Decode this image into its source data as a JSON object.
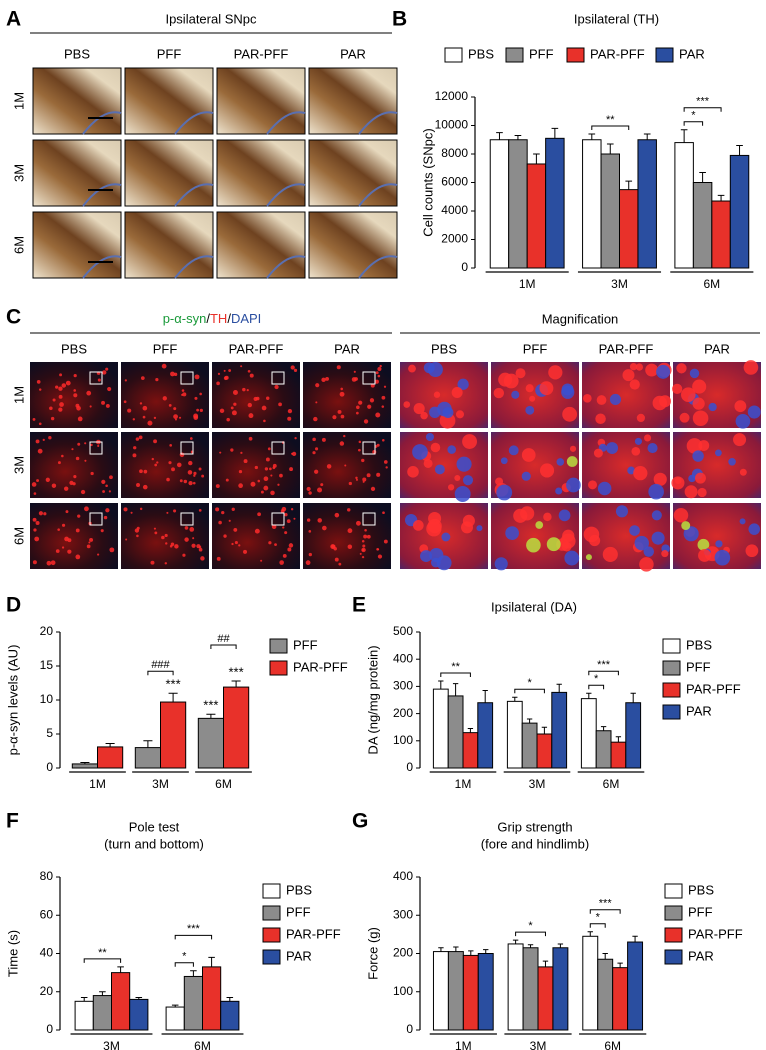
{
  "figure_labels": {
    "a": "A",
    "b": "B",
    "c": "C",
    "d": "D",
    "e": "E",
    "f": "F",
    "g": "G"
  },
  "panel_a": {
    "title": "Ipsilateral SNpc",
    "columns": [
      "PBS",
      "PFF",
      "PAR-PFF",
      "PAR"
    ],
    "rows": [
      "1M",
      "3M",
      "6M"
    ]
  },
  "panel_c": {
    "title_parts": [
      "p-α-syn",
      "/",
      "TH",
      "/",
      "DAPI"
    ],
    "title_colors": [
      "#1a9a3a",
      "#000000",
      "#e8312a",
      "#000000",
      "#2a4ea0"
    ],
    "magnification_title": "Magnification",
    "columns": [
      "PBS",
      "PFF",
      "PAR-PFF",
      "PAR"
    ],
    "rows": [
      "1M",
      "3M",
      "6M"
    ]
  },
  "chart_data": [
    {
      "type": "bar",
      "title": "Ipsilateral (TH)",
      "y_label": "Cell counts (SNpc)",
      "legend": "top",
      "categories": [
        "1M",
        "3M",
        "6M"
      ],
      "ylim": [
        0,
        12000
      ],
      "yticks": [
        0,
        2000,
        4000,
        6000,
        8000,
        10000,
        12000
      ],
      "series": [
        {
          "name": "PBS",
          "color": "#ffffff",
          "values": [
            9000,
            9000,
            8800
          ],
          "errors": [
            500,
            400,
            900
          ]
        },
        {
          "name": "PFF",
          "color": "#8c8c8c",
          "values": [
            9000,
            8000,
            6000
          ],
          "errors": [
            300,
            700,
            700
          ]
        },
        {
          "name": "PAR-PFF",
          "color": "#e8312a",
          "values": [
            7300,
            5500,
            4700
          ],
          "errors": [
            700,
            600,
            400
          ]
        },
        {
          "name": "PAR",
          "color": "#2a4ea0",
          "values": [
            9100,
            9000,
            7900
          ],
          "errors": [
            700,
            400,
            700
          ]
        }
      ],
      "annotations": [
        {
          "text": "**",
          "category": 1,
          "series": [
            0,
            2
          ]
        },
        {
          "text": "*",
          "category": 2,
          "series": [
            0,
            1
          ]
        },
        {
          "text": "***",
          "category": 2,
          "series": [
            0,
            2
          ]
        }
      ]
    },
    {
      "type": "bar",
      "y_label": "p-α-syn levels (AU)",
      "legend": "right",
      "categories": [
        "1M",
        "3M",
        "6M"
      ],
      "ylim": [
        0,
        20
      ],
      "yticks": [
        0,
        5,
        10,
        15,
        20
      ],
      "series": [
        {
          "name": "PFF",
          "color": "#8c8c8c",
          "values": [
            0.6,
            3.0,
            7.3
          ],
          "errors": [
            0.2,
            1.0,
            0.6
          ]
        },
        {
          "name": "PAR-PFF",
          "color": "#e8312a",
          "values": [
            3.1,
            9.7,
            11.9
          ],
          "errors": [
            0.5,
            1.3,
            0.9
          ]
        }
      ],
      "annotations": [
        {
          "text": "***",
          "category": 1,
          "series": [
            1
          ]
        },
        {
          "text": "###",
          "category": 1,
          "series": [
            0,
            1
          ]
        },
        {
          "text": "***",
          "category": 2,
          "series": [
            0
          ]
        },
        {
          "text": "***",
          "category": 2,
          "series": [
            1
          ]
        },
        {
          "text": "##",
          "category": 2,
          "series": [
            0,
            1
          ]
        }
      ]
    },
    {
      "type": "bar",
      "title": "Ipsilateral (DA)",
      "y_label": "DA (ng/mg protein)",
      "legend": "right",
      "categories": [
        "1M",
        "3M",
        "6M"
      ],
      "ylim": [
        0,
        500
      ],
      "yticks": [
        0,
        100,
        200,
        300,
        400,
        500
      ],
      "series": [
        {
          "name": "PBS",
          "color": "#ffffff",
          "values": [
            290,
            245,
            255
          ],
          "errors": [
            30,
            15,
            20
          ]
        },
        {
          "name": "PFF",
          "color": "#8c8c8c",
          "values": [
            265,
            165,
            137
          ],
          "errors": [
            45,
            15,
            15
          ]
        },
        {
          "name": "PAR-PFF",
          "color": "#e8312a",
          "values": [
            130,
            125,
            95
          ],
          "errors": [
            15,
            25,
            20
          ]
        },
        {
          "name": "PAR",
          "color": "#2a4ea0",
          "values": [
            240,
            278,
            240
          ],
          "errors": [
            45,
            30,
            35
          ]
        }
      ],
      "annotations": [
        {
          "text": "**",
          "category": 0,
          "series": [
            0,
            2
          ]
        },
        {
          "text": "*",
          "category": 1,
          "series": [
            0,
            2
          ]
        },
        {
          "text": "*",
          "category": 2,
          "series": [
            0,
            1
          ]
        },
        {
          "text": "***",
          "category": 2,
          "series": [
            0,
            2
          ]
        }
      ]
    },
    {
      "type": "bar",
      "title": "Pole test",
      "subtitle": "(turn and bottom)",
      "y_label": "Time (s)",
      "legend": "right",
      "categories": [
        "3M",
        "6M"
      ],
      "ylim": [
        0,
        80
      ],
      "yticks": [
        0,
        20,
        40,
        60,
        80
      ],
      "series": [
        {
          "name": "PBS",
          "color": "#ffffff",
          "values": [
            15,
            12
          ],
          "errors": [
            2,
            1
          ]
        },
        {
          "name": "PFF",
          "color": "#8c8c8c",
          "values": [
            18,
            28
          ],
          "errors": [
            2,
            3
          ]
        },
        {
          "name": "PAR-PFF",
          "color": "#e8312a",
          "values": [
            30,
            33
          ],
          "errors": [
            3,
            5
          ]
        },
        {
          "name": "PAR",
          "color": "#2a4ea0",
          "values": [
            16,
            15
          ],
          "errors": [
            1,
            2
          ]
        }
      ],
      "annotations": [
        {
          "text": "**",
          "category": 0,
          "series": [
            0,
            2
          ]
        },
        {
          "text": "*",
          "category": 1,
          "series": [
            0,
            1
          ]
        },
        {
          "text": "***",
          "category": 1,
          "series": [
            0,
            2
          ]
        }
      ]
    },
    {
      "type": "bar",
      "title": "Grip strength",
      "subtitle": "(fore and hindlimb)",
      "y_label": "Force (g)",
      "legend": "right",
      "categories": [
        "1M",
        "3M",
        "6M"
      ],
      "ylim": [
        0,
        400
      ],
      "yticks": [
        0,
        100,
        200,
        300,
        400
      ],
      "series": [
        {
          "name": "PBS",
          "color": "#ffffff",
          "values": [
            205,
            225,
            245
          ],
          "errors": [
            10,
            10,
            12
          ]
        },
        {
          "name": "PFF",
          "color": "#8c8c8c",
          "values": [
            205,
            215,
            185
          ],
          "errors": [
            12,
            8,
            15
          ]
        },
        {
          "name": "PAR-PFF",
          "color": "#e8312a",
          "values": [
            195,
            165,
            163
          ],
          "errors": [
            12,
            15,
            12
          ]
        },
        {
          "name": "PAR",
          "color": "#2a4ea0",
          "values": [
            200,
            215,
            230
          ],
          "errors": [
            10,
            10,
            15
          ]
        }
      ],
      "annotations": [
        {
          "text": "*",
          "category": 1,
          "series": [
            0,
            2
          ]
        },
        {
          "text": "*",
          "category": 2,
          "series": [
            0,
            1
          ]
        },
        {
          "text": "***",
          "category": 2,
          "series": [
            0,
            2
          ]
        }
      ]
    }
  ]
}
